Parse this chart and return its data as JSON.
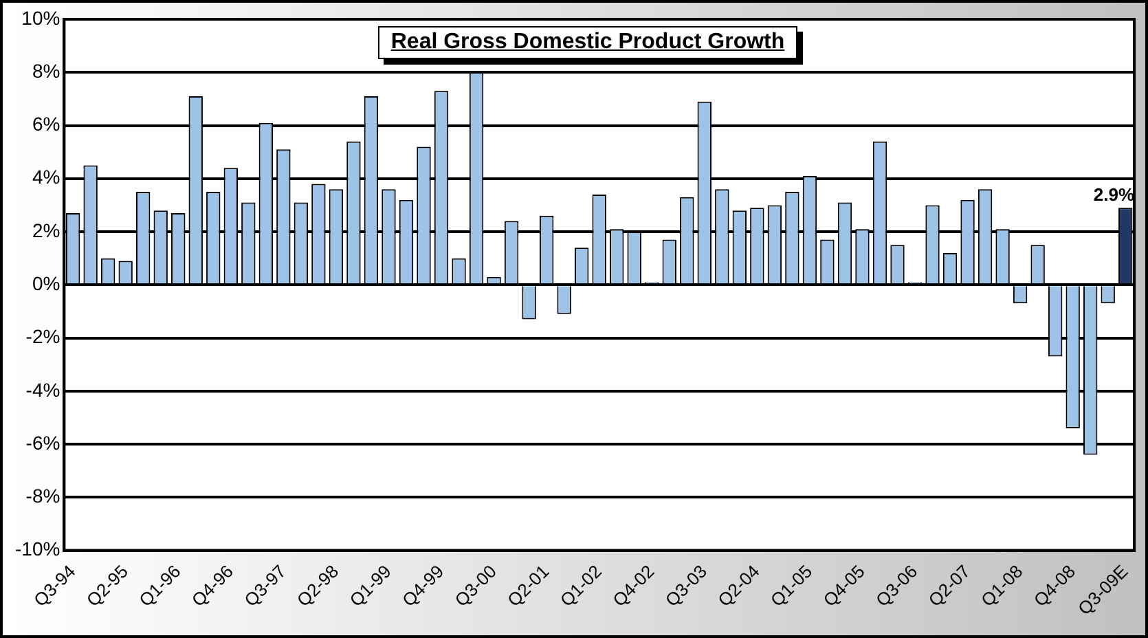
{
  "chart_data": {
    "type": "bar",
    "title": "Real Gross Domestic Product Growth",
    "categories": [
      "Q3-94",
      null,
      null,
      "Q2-95",
      null,
      null,
      "Q1-96",
      null,
      null,
      "Q4-96",
      null,
      null,
      "Q3-97",
      null,
      null,
      "Q2-98",
      null,
      null,
      "Q1-99",
      null,
      null,
      "Q4-99",
      null,
      null,
      "Q3-00",
      null,
      null,
      "Q2-01",
      null,
      null,
      "Q1-02",
      null,
      null,
      "Q4-02",
      null,
      null,
      "Q3-03",
      null,
      null,
      "Q2-04",
      null,
      null,
      "Q1-05",
      null,
      null,
      "Q4-05",
      null,
      null,
      "Q3-06",
      null,
      null,
      "Q2-07",
      null,
      null,
      "Q1-08",
      null,
      null,
      "Q4-08",
      null,
      null,
      "Q3-09E"
    ],
    "values": [
      2.7,
      4.5,
      1.0,
      0.9,
      3.5,
      2.8,
      2.7,
      7.1,
      3.5,
      4.4,
      3.1,
      6.1,
      5.1,
      3.1,
      3.8,
      3.6,
      5.4,
      7.1,
      3.6,
      3.2,
      5.2,
      7.3,
      1.0,
      8.0,
      0.3,
      2.4,
      -1.3,
      2.6,
      -1.1,
      1.4,
      3.4,
      2.1,
      2.0,
      0.1,
      1.7,
      3.3,
      6.9,
      3.6,
      2.8,
      2.9,
      3.0,
      3.5,
      4.1,
      1.7,
      3.1,
      2.1,
      5.4,
      1.5,
      0.1,
      3.0,
      1.2,
      3.2,
      3.6,
      2.1,
      -0.7,
      1.5,
      -2.7,
      -5.4,
      -6.4,
      -0.7,
      2.9
    ],
    "colors": [
      "#9dc3e6",
      "#9dc3e6",
      "#9dc3e6",
      "#9dc3e6",
      "#9dc3e6",
      "#9dc3e6",
      "#9dc3e6",
      "#9dc3e6",
      "#9dc3e6",
      "#9dc3e6",
      "#9dc3e6",
      "#9dc3e6",
      "#9dc3e6",
      "#9dc3e6",
      "#9dc3e6",
      "#9dc3e6",
      "#9dc3e6",
      "#9dc3e6",
      "#9dc3e6",
      "#9dc3e6",
      "#9dc3e6",
      "#9dc3e6",
      "#9dc3e6",
      "#9dc3e6",
      "#9dc3e6",
      "#9dc3e6",
      "#9dc3e6",
      "#9dc3e6",
      "#9dc3e6",
      "#9dc3e6",
      "#9dc3e6",
      "#9dc3e6",
      "#9dc3e6",
      "#9dc3e6",
      "#9dc3e6",
      "#9dc3e6",
      "#9dc3e6",
      "#9dc3e6",
      "#9dc3e6",
      "#9dc3e6",
      "#9dc3e6",
      "#9dc3e6",
      "#9dc3e6",
      "#9dc3e6",
      "#9dc3e6",
      "#9dc3e6",
      "#9dc3e6",
      "#9dc3e6",
      "#9dc3e6",
      "#9dc3e6",
      "#9dc3e6",
      "#9dc3e6",
      "#9dc3e6",
      "#9dc3e6",
      "#9dc3e6",
      "#9dc3e6",
      "#9dc3e6",
      "#9dc3e6",
      "#9dc3e6",
      "#9dc3e6",
      "#1f3864"
    ],
    "value_labels": [
      null,
      null,
      null,
      null,
      null,
      null,
      null,
      null,
      null,
      null,
      null,
      null,
      null,
      null,
      null,
      null,
      null,
      null,
      null,
      null,
      null,
      null,
      null,
      null,
      null,
      null,
      null,
      null,
      null,
      null,
      null,
      null,
      null,
      null,
      null,
      null,
      null,
      null,
      null,
      null,
      null,
      null,
      null,
      null,
      null,
      null,
      null,
      null,
      null,
      null,
      null,
      null,
      null,
      null,
      null,
      null,
      null,
      null,
      null,
      null,
      "2.9%"
    ],
    "ylim": [
      -10,
      10
    ],
    "yticks": [
      {
        "value": -10,
        "label": "-10%"
      },
      {
        "value": -8,
        "label": "-8%"
      },
      {
        "value": -6,
        "label": "-6%"
      },
      {
        "value": -4,
        "label": "-4%"
      },
      {
        "value": -2,
        "label": "-2%"
      },
      {
        "value": 0,
        "label": "0%"
      },
      {
        "value": 2,
        "label": "2%"
      },
      {
        "value": 4,
        "label": "4%"
      },
      {
        "value": 6,
        "label": "6%"
      },
      {
        "value": 8,
        "label": "8%"
      },
      {
        "value": 10,
        "label": "10%"
      }
    ],
    "grid": "y"
  }
}
